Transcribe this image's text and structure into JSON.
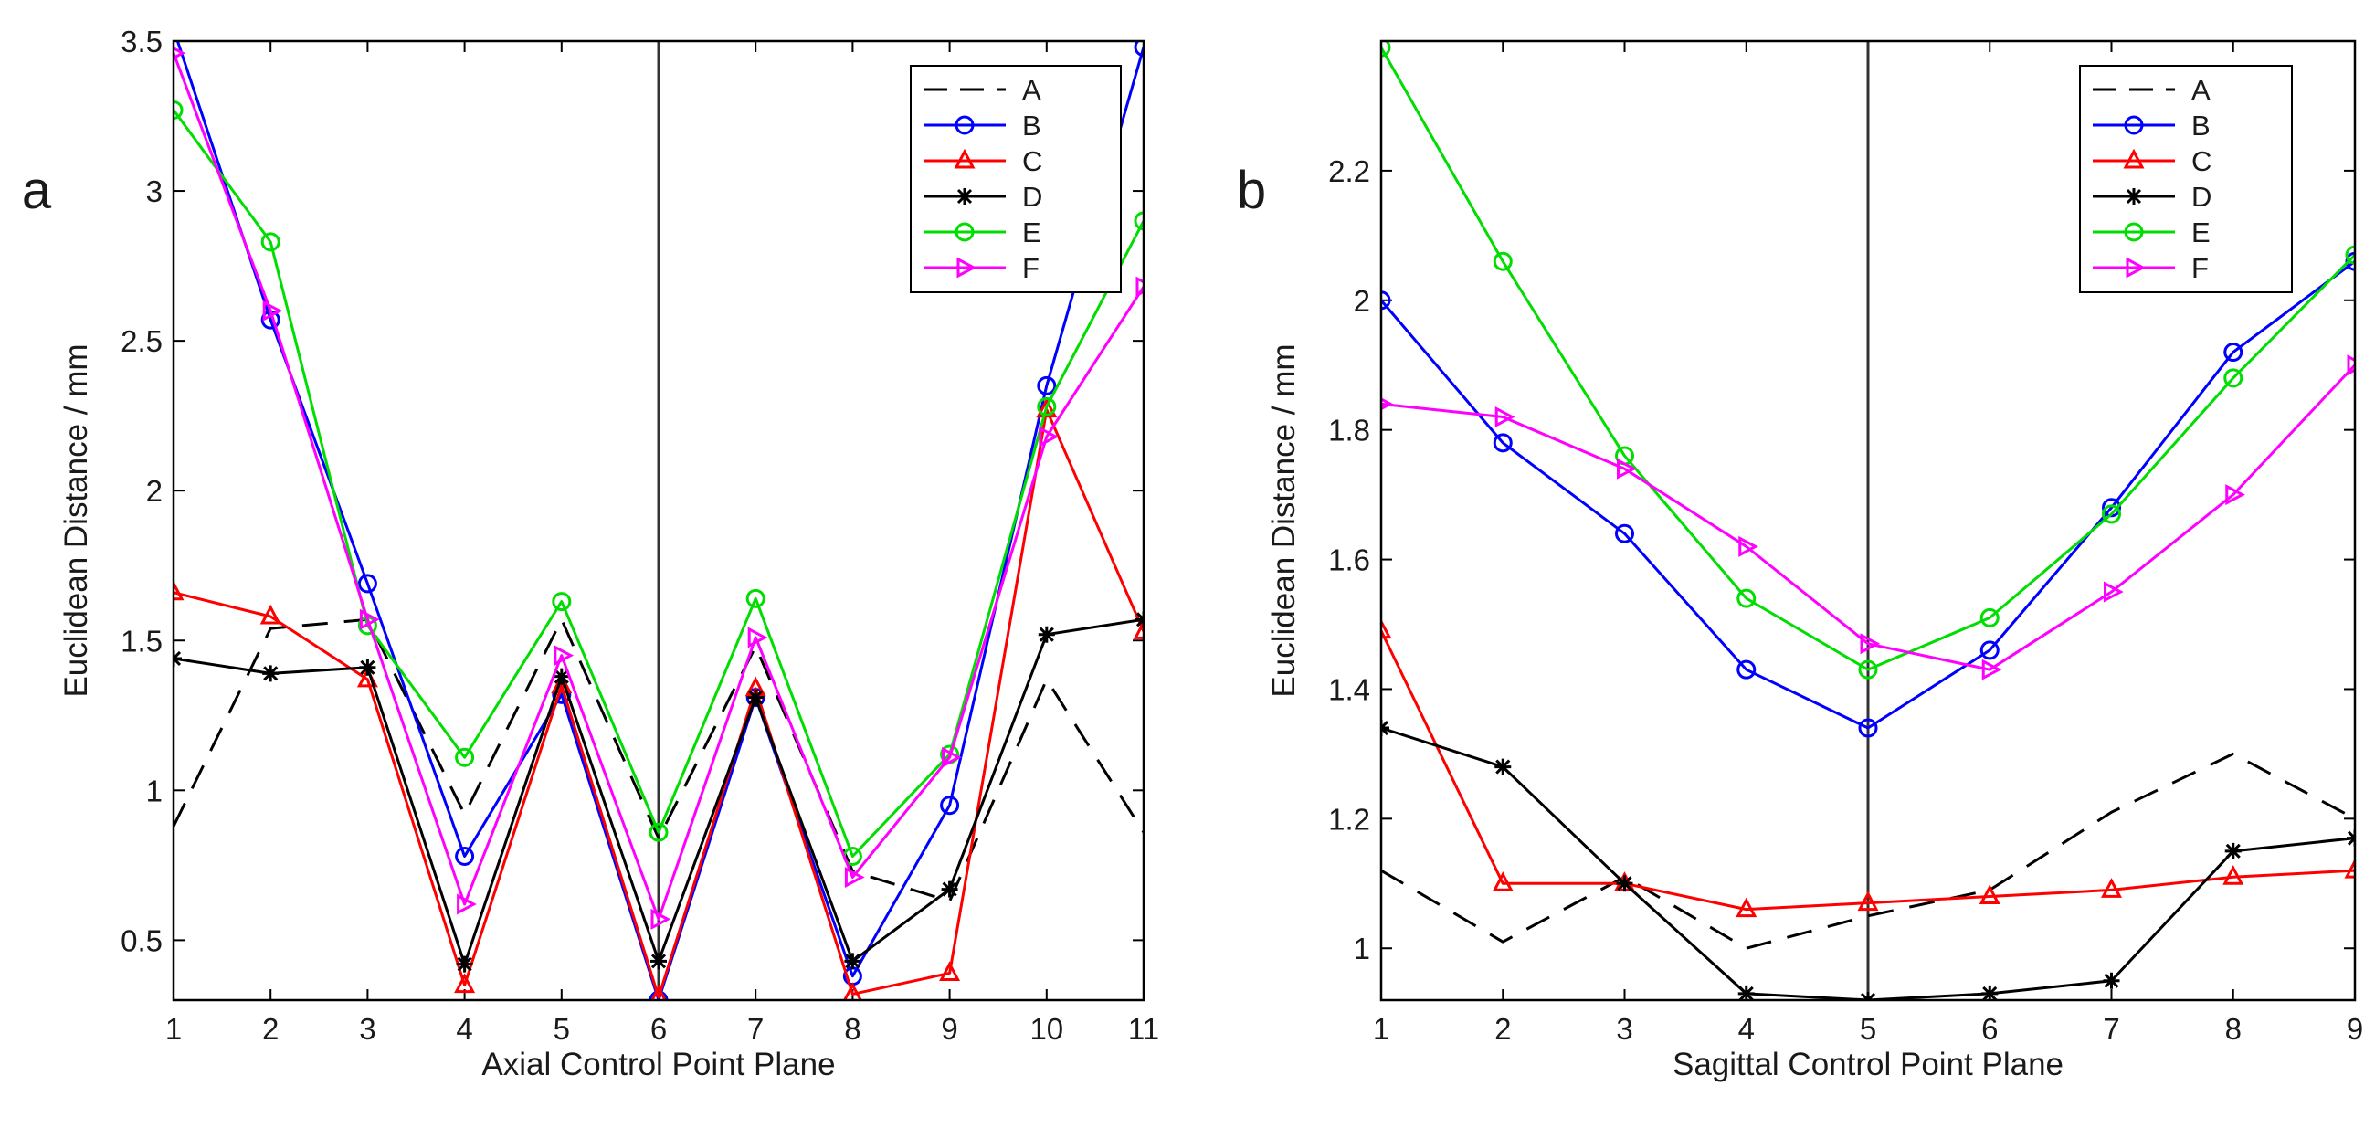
{
  "chart_data": [
    {
      "type": "line",
      "panel_label": "a",
      "xlabel": "Axial Control Point Plane",
      "ylabel": "Euclidean Distance / mm",
      "x": [
        1,
        2,
        3,
        4,
        5,
        6,
        7,
        8,
        9,
        10,
        11
      ],
      "xlim": [
        1,
        11
      ],
      "ylim": [
        0.3,
        3.5
      ],
      "xticks": [
        "1",
        "2",
        "3",
        "4",
        "5",
        "6",
        "7",
        "8",
        "9",
        "10",
        "11"
      ],
      "yticks": [
        {
          "value": 0.5,
          "label": "0.5"
        },
        {
          "value": 1,
          "label": "1"
        },
        {
          "value": 1.5,
          "label": "1.5"
        },
        {
          "value": 2,
          "label": "2"
        },
        {
          "value": 2.5,
          "label": "2.5"
        },
        {
          "value": 3,
          "label": "3"
        },
        {
          "value": 3.5,
          "label": "3.5"
        }
      ],
      "vline": 6,
      "legend_position": "top-right",
      "series": [
        {
          "name": "A",
          "color": "#000000",
          "dash": "28 18",
          "marker": "none",
          "values": [
            0.88,
            1.54,
            1.57,
            0.92,
            1.57,
            0.84,
            1.48,
            0.73,
            0.63,
            1.37,
            0.86
          ]
        },
        {
          "name": "B",
          "color": "#0000ff",
          "dash": "",
          "marker": "circle",
          "values": [
            3.54,
            2.57,
            1.69,
            0.78,
            1.32,
            0.3,
            1.31,
            0.38,
            0.95,
            2.35,
            3.48
          ]
        },
        {
          "name": "C",
          "color": "#ff0000",
          "dash": "",
          "marker": "triangle-up",
          "values": [
            1.66,
            1.58,
            1.37,
            0.35,
            1.35,
            0.31,
            1.34,
            0.32,
            0.39,
            2.27,
            1.53
          ]
        },
        {
          "name": "D",
          "color": "#000000",
          "dash": "",
          "marker": "asterisk",
          "values": [
            1.44,
            1.39,
            1.41,
            0.42,
            1.38,
            0.43,
            1.31,
            0.43,
            0.67,
            1.52,
            1.57
          ]
        },
        {
          "name": "E",
          "color": "#00dd00",
          "dash": "",
          "marker": "circle",
          "values": [
            3.27,
            2.83,
            1.55,
            1.11,
            1.63,
            0.86,
            1.64,
            0.78,
            1.12,
            2.28,
            2.9
          ]
        },
        {
          "name": "F",
          "color": "#ff00ff",
          "dash": "",
          "marker": "triangle-right",
          "values": [
            3.46,
            2.6,
            1.57,
            0.62,
            1.45,
            0.57,
            1.51,
            0.71,
            1.11,
            2.18,
            2.68
          ]
        }
      ]
    },
    {
      "type": "line",
      "panel_label": "b",
      "xlabel": "Sagittal Control Point Plane",
      "ylabel": "Euclidean Distance / mm",
      "x": [
        1,
        2,
        3,
        4,
        5,
        6,
        7,
        8,
        9
      ],
      "xlim": [
        1,
        9
      ],
      "ylim": [
        0.92,
        2.4
      ],
      "xticks": [
        "1",
        "2",
        "3",
        "4",
        "5",
        "6",
        "7",
        "8",
        "9"
      ],
      "yticks": [
        {
          "value": 1,
          "label": "1"
        },
        {
          "value": 1.2,
          "label": "1.2"
        },
        {
          "value": 1.4,
          "label": "1.4"
        },
        {
          "value": 1.6,
          "label": "1.6"
        },
        {
          "value": 1.8,
          "label": "1.8"
        },
        {
          "value": 2,
          "label": "2"
        },
        {
          "value": 2.2,
          "label": "2.2"
        }
      ],
      "vline": 5,
      "legend_position": "top-right",
      "series": [
        {
          "name": "A",
          "color": "#000000",
          "dash": "28 18",
          "marker": "none",
          "values": [
            1.12,
            1.01,
            1.11,
            1.0,
            1.05,
            1.09,
            1.21,
            1.3,
            1.2
          ]
        },
        {
          "name": "B",
          "color": "#0000ff",
          "dash": "",
          "marker": "circle",
          "values": [
            2.0,
            1.78,
            1.64,
            1.43,
            1.34,
            1.46,
            1.68,
            1.92,
            2.06
          ]
        },
        {
          "name": "C",
          "color": "#ff0000",
          "dash": "",
          "marker": "triangle-up",
          "values": [
            1.49,
            1.1,
            1.1,
            1.06,
            1.07,
            1.08,
            1.09,
            1.11,
            1.12
          ]
        },
        {
          "name": "D",
          "color": "#000000",
          "dash": "",
          "marker": "asterisk",
          "values": [
            1.34,
            1.28,
            1.1,
            0.93,
            0.92,
            0.93,
            0.95,
            1.15,
            1.17
          ]
        },
        {
          "name": "E",
          "color": "#00dd00",
          "dash": "",
          "marker": "circle",
          "values": [
            2.39,
            2.06,
            1.76,
            1.54,
            1.43,
            1.51,
            1.67,
            1.88,
            2.07
          ]
        },
        {
          "name": "F",
          "color": "#ff00ff",
          "dash": "",
          "marker": "triangle-right",
          "values": [
            1.84,
            1.82,
            1.74,
            1.62,
            1.47,
            1.43,
            1.55,
            1.7,
            1.9
          ]
        }
      ]
    }
  ]
}
